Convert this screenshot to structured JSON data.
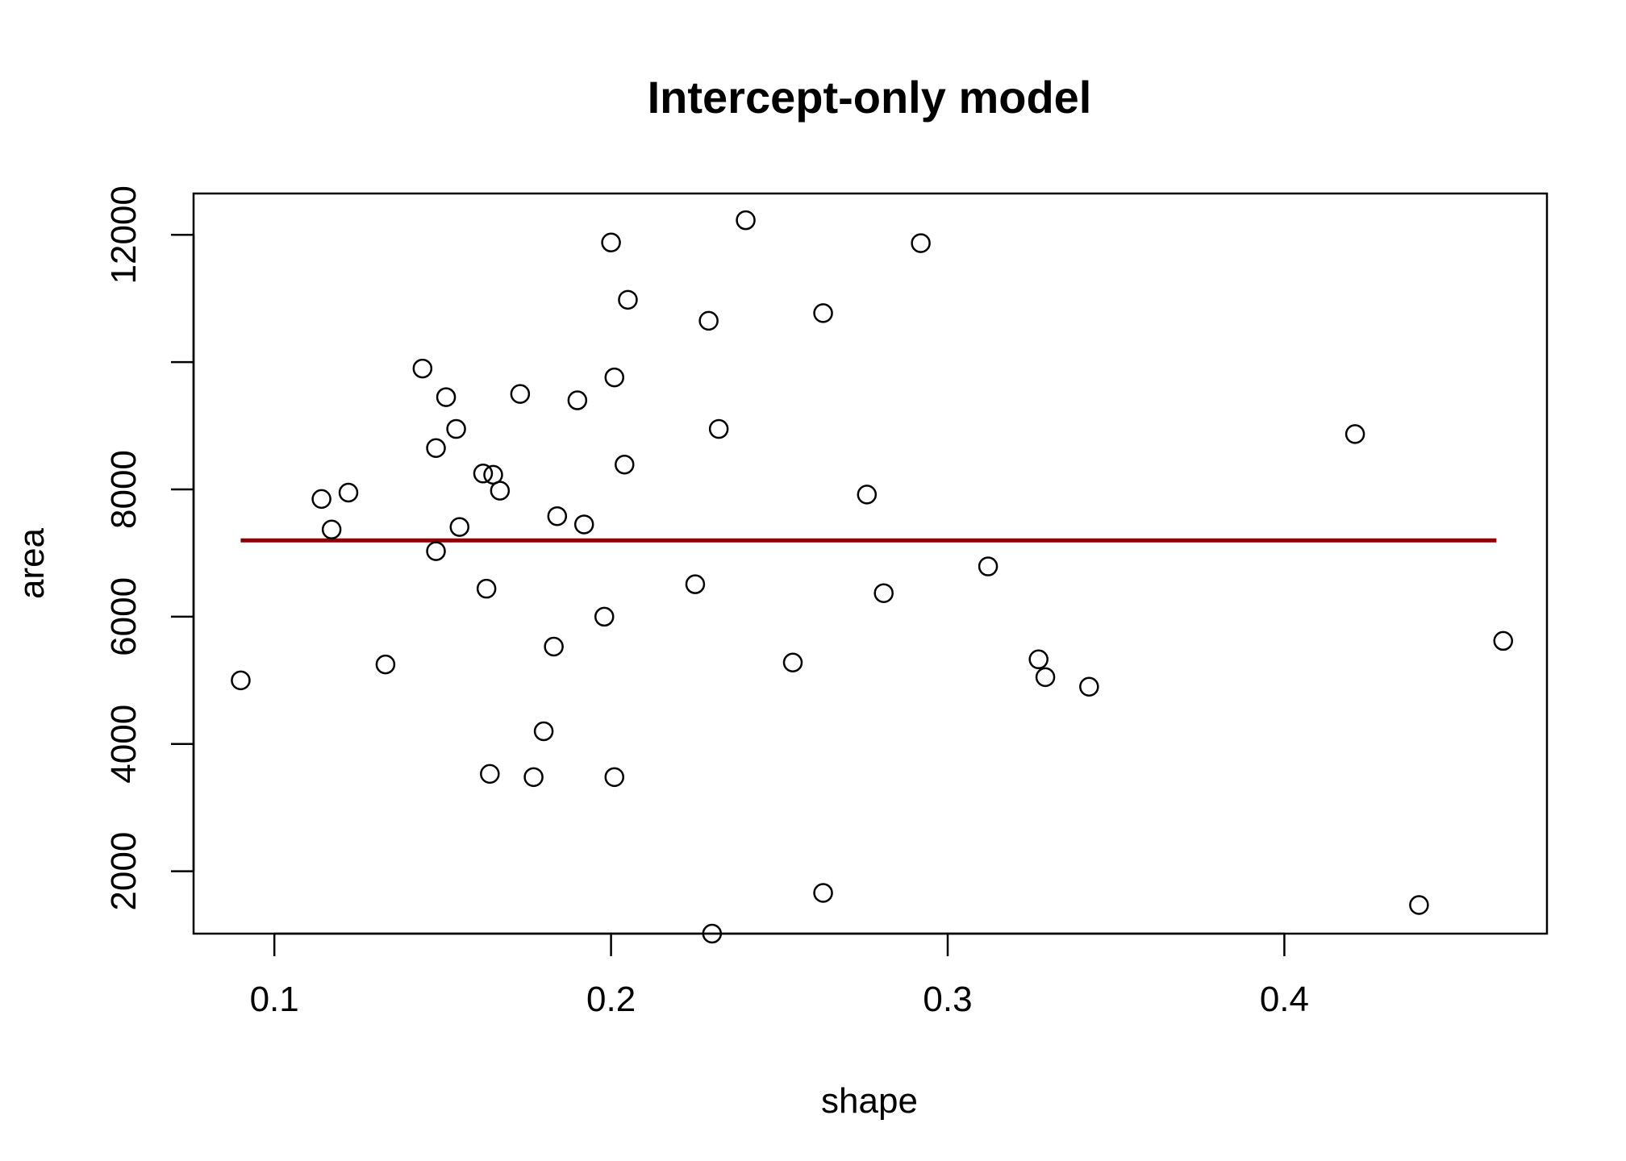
{
  "chart_data": {
    "type": "scatter",
    "title": "Intercept-only model",
    "xlabel": "shape",
    "ylabel": "area",
    "xlim": [
      0.076,
      0.478
    ],
    "ylim": [
      1020,
      12650
    ],
    "xticks": [
      0.1,
      0.2,
      0.3,
      0.4
    ],
    "xtick_labels": [
      "0.1",
      "0.2",
      "0.3",
      "0.4"
    ],
    "yticks": [
      2000,
      4000,
      6000,
      8000,
      10000,
      12000
    ],
    "ytick_labels": [
      "2000",
      "4000",
      "6000",
      "8000",
      "",
      "12000"
    ],
    "grid": false,
    "legend": "none",
    "point_color": "#000000",
    "line_color": "#8b0000",
    "fit_line": {
      "x": [
        0.09,
        0.463
      ],
      "y": [
        7200,
        7200
      ]
    },
    "points": [
      [
        0.09,
        5000
      ],
      [
        0.114,
        7850
      ],
      [
        0.117,
        7370
      ],
      [
        0.122,
        7950
      ],
      [
        0.133,
        5250
      ],
      [
        0.144,
        9900
      ],
      [
        0.148,
        8650
      ],
      [
        0.148,
        7030
      ],
      [
        0.151,
        9450
      ],
      [
        0.154,
        8950
      ],
      [
        0.155,
        7410
      ],
      [
        0.162,
        8250
      ],
      [
        0.163,
        6440
      ],
      [
        0.164,
        3530
      ],
      [
        0.165,
        8230
      ],
      [
        0.167,
        7980
      ],
      [
        0.173,
        9500
      ],
      [
        0.177,
        3480
      ],
      [
        0.18,
        4200
      ],
      [
        0.183,
        5530
      ],
      [
        0.184,
        7580
      ],
      [
        0.19,
        9400
      ],
      [
        0.192,
        7450
      ],
      [
        0.198,
        6000
      ],
      [
        0.2,
        11880
      ],
      [
        0.201,
        9760
      ],
      [
        0.201,
        3480
      ],
      [
        0.204,
        8390
      ],
      [
        0.205,
        10980
      ],
      [
        0.225,
        6510
      ],
      [
        0.229,
        10650
      ],
      [
        0.23,
        1020
      ],
      [
        0.232,
        8950
      ],
      [
        0.24,
        12230
      ],
      [
        0.254,
        5280
      ],
      [
        0.263,
        1660
      ],
      [
        0.263,
        10770
      ],
      [
        0.276,
        7920
      ],
      [
        0.281,
        6370
      ],
      [
        0.292,
        11870
      ],
      [
        0.312,
        6790
      ],
      [
        0.327,
        5330
      ],
      [
        0.329,
        5050
      ],
      [
        0.342,
        4900
      ],
      [
        0.421,
        8870
      ],
      [
        0.44,
        1470
      ],
      [
        0.465,
        5620
      ]
    ]
  }
}
